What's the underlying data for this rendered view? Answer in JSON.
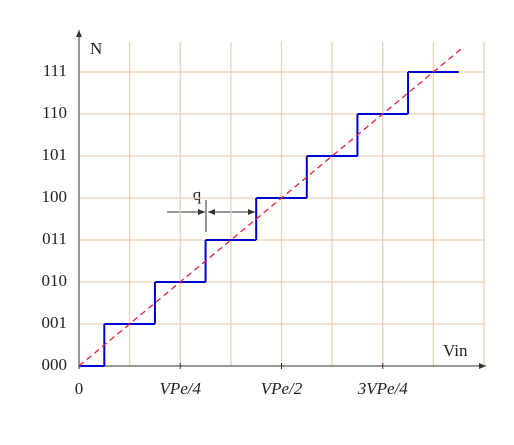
{
  "chart_data": {
    "type": "step",
    "xlabel": "Vin",
    "ylabel": "N",
    "xlim": [
      0,
      8
    ],
    "ylim": [
      0,
      8
    ],
    "xticks": [
      0,
      {
        "value": 2,
        "label": "VPe/4"
      },
      {
        "value": 4,
        "label": "VPe/2"
      },
      {
        "value": 6,
        "label": "3VPe/4"
      }
    ],
    "yticks": [
      {
        "value": 0,
        "label": "000"
      },
      {
        "value": 1,
        "label": "001"
      },
      {
        "value": 2,
        "label": "010"
      },
      {
        "value": 3,
        "label": "011"
      },
      {
        "value": 4,
        "label": "100"
      },
      {
        "value": 5,
        "label": "101"
      },
      {
        "value": 6,
        "label": "110"
      },
      {
        "value": 7,
        "label": "111"
      }
    ],
    "grid": true,
    "series": [
      {
        "style": "step",
        "color": "#0000cc",
        "x": [
          0,
          0.5,
          1.5,
          2.5,
          3.5,
          4.5,
          5.5,
          6.5,
          7.5
        ],
        "values": [
          0,
          1,
          2,
          3,
          4,
          5,
          6,
          7,
          7
        ]
      },
      {
        "style": "dashed",
        "color": "#e0203a",
        "x": [
          0,
          7.6
        ],
        "values": [
          0,
          7.6
        ]
      }
    ],
    "annotation": "q"
  }
}
